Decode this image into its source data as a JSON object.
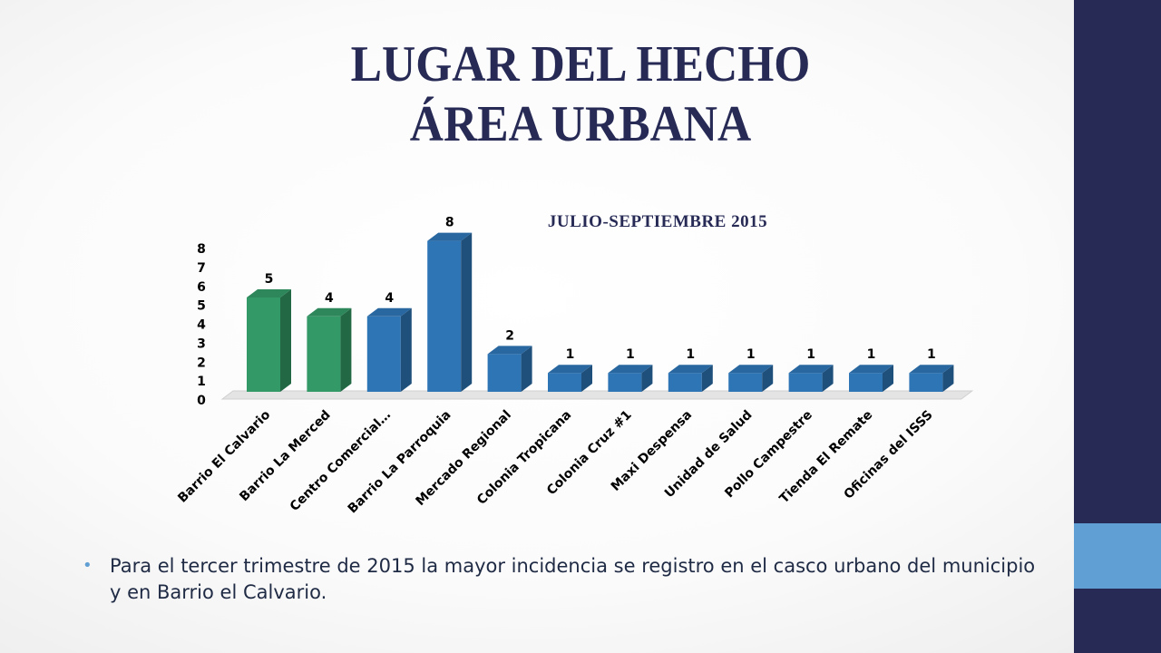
{
  "slide": {
    "title_line1": "LUGAR DEL HECHO",
    "title_line2": "ÁREA URBANA",
    "bullet": "Para el tercer trimestre de 2015 la mayor incidencia se registro en el casco urbano del municipio y en Barrio el Calvario."
  },
  "colors": {
    "green": "#339966",
    "blue": "#2e75b6",
    "title": "#262a55",
    "side_panel": "#262a55",
    "side_accent": "#5f9fd3"
  },
  "chart_data": {
    "type": "bar",
    "title": "JULIO-SEPTIEMBRE 2015",
    "categories": [
      "Barrio El Calvario",
      "Barrio La Merced",
      "Centro Comercial…",
      "Barrio La Parroquia",
      "Mercado Regional",
      "Colonia Tropicana",
      "Colonia Cruz #1",
      "Maxi Despensa",
      "Unidad de Salud",
      "Pollo Campestre",
      "Tienda El Remate",
      "Oficinas del ISSS"
    ],
    "values": [
      5,
      4,
      4,
      8,
      2,
      1,
      1,
      1,
      1,
      1,
      1,
      1
    ],
    "bar_colors": [
      "green",
      "green",
      "blue",
      "blue",
      "blue",
      "blue",
      "blue",
      "blue",
      "blue",
      "blue",
      "blue",
      "blue"
    ],
    "ylim": [
      0,
      8
    ],
    "yticks": [
      0,
      1,
      2,
      3,
      4,
      5,
      6,
      7,
      8
    ],
    "grid": false,
    "legend": "none",
    "data_labels": true
  }
}
